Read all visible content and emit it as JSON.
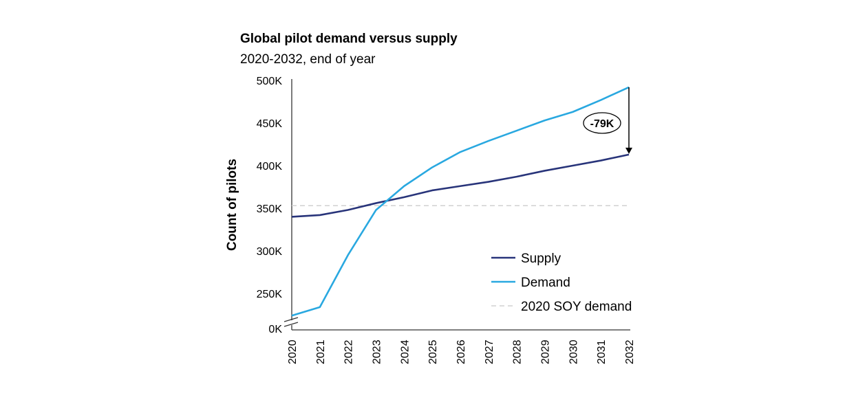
{
  "chart_data": {
    "type": "line",
    "title": "Global pilot demand versus supply",
    "subtitle": "2020-2032, end of year",
    "xlabel": "",
    "ylabel": "Count of pilots",
    "x": [
      "2020",
      "2021",
      "2022",
      "2023",
      "2024",
      "2025",
      "2026",
      "2027",
      "2028",
      "2029",
      "2030",
      "2031",
      "2032"
    ],
    "ylim": [
      200,
      500
    ],
    "y_axis_break": true,
    "y_ticks": [
      {
        "label": "500K",
        "value": 500
      },
      {
        "label": "450K",
        "value": 450
      },
      {
        "label": "400K",
        "value": 400
      },
      {
        "label": "350K",
        "value": 350
      },
      {
        "label": "300K",
        "value": 300
      },
      {
        "label": "250K",
        "value": 250
      },
      {
        "label": "0K",
        "value": 0
      }
    ],
    "series": [
      {
        "name": "Supply",
        "color": "#28347a",
        "values": [
          340,
          342,
          348,
          356,
          363,
          371,
          376,
          381,
          387,
          394,
          400,
          406,
          413
        ]
      },
      {
        "name": "Demand",
        "color": "#29a8e0",
        "values": [
          224,
          234,
          295,
          348,
          376,
          398,
          416,
          429,
          441,
          453,
          463,
          477,
          492
        ]
      }
    ],
    "reference_lines": [
      {
        "name": "2020 SOY demand",
        "color": "#d0d0d0",
        "value": 353,
        "style": "dashed"
      }
    ],
    "annotations": [
      {
        "text": "-79K",
        "year": "2032",
        "from": 492,
        "to": 413
      }
    ],
    "legend_position": "bottom-right",
    "grid": false
  }
}
